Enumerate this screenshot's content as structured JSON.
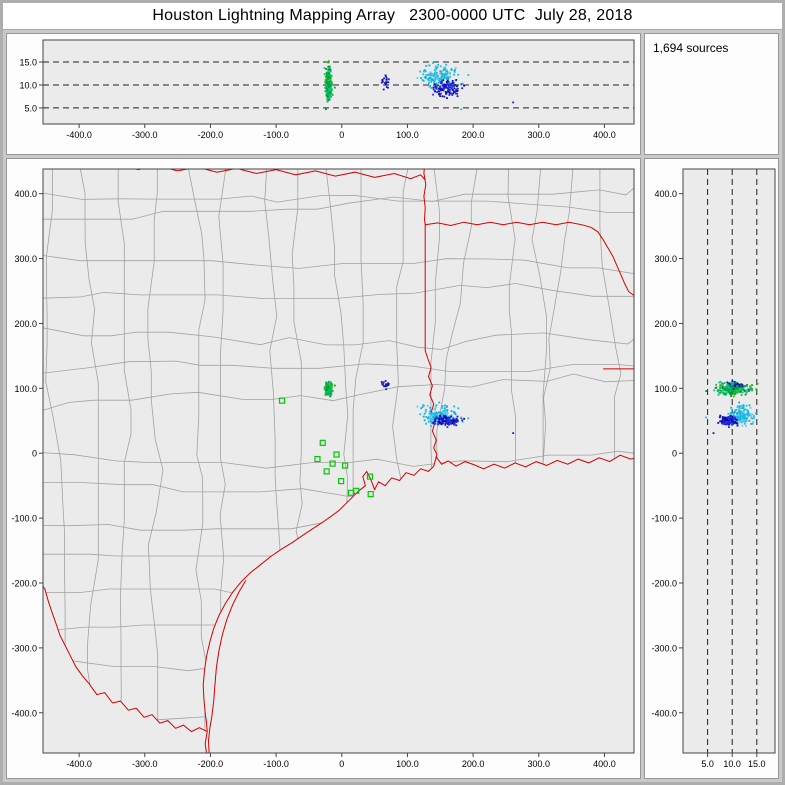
{
  "window": {
    "title": "Houston Lightning Mapping Array   2300-0000 UTC  July 28, 2018"
  },
  "sources_panel": {
    "count_label": "1,694 sources"
  },
  "colors": {
    "window_bg": "#c9c9c9",
    "panel_bg": "#fdfdfd",
    "plot_bg": "#ebebeb",
    "frame": "#444444",
    "grid_dash": "#222222",
    "county": "#a2a2a2",
    "state": "#d40000",
    "station": "#00c800"
  },
  "chart_data": {
    "type": "scatter",
    "title": "Houston Lightning Mapping Array 2300-0000 UTC July 28, 2018",
    "total_sources_label": "1,694 sources",
    "total_sources": 1694,
    "axes": {
      "ew_ticks": {
        "values": [
          -400,
          -300,
          -200,
          -100,
          0,
          100,
          200,
          300,
          400
        ],
        "labels": [
          "-400.0",
          "-300.0",
          "-200.0",
          "-100.0",
          "0",
          "100.0",
          "200.0",
          "300.0",
          "400.0"
        ]
      },
      "ns_ticks": {
        "values": [
          400,
          300,
          200,
          100,
          0,
          -100,
          -200,
          -300,
          -400
        ],
        "labels": [
          "400.0",
          "300.0",
          "200.0",
          "100.0",
          "0",
          "-100.0",
          "-200.0",
          "-300.0",
          "-400.0"
        ]
      },
      "alt_ticks_top": {
        "values": [
          15,
          10,
          5
        ],
        "labels": [
          "15.0",
          "10.0",
          "5.0"
        ]
      },
      "alt_ticks_right": {
        "values": [
          5,
          10,
          15
        ],
        "labels": [
          "5.0",
          "10.0",
          "15.0"
        ]
      },
      "alt_gridlines_km": [
        5,
        10,
        15
      ],
      "ew_lim_km": [
        -455,
        445
      ],
      "ns_lim_km": [
        -462,
        438
      ],
      "alt_lim_top_km": [
        1.5,
        19.8
      ],
      "alt_lim_right_km": [
        0,
        18.7
      ]
    },
    "storm_clusters": [
      {
        "name": "storm-west-cell",
        "ew_km": -20,
        "ew_sd": 2.2,
        "ns_km": 99,
        "ns_sd": 5,
        "alt_km": 10.3,
        "alt_sd": 1.7,
        "n": 280,
        "colors": [
          "#00a800",
          "#00c060",
          "#10c0c0",
          "#30b830",
          "#008f30"
        ]
      },
      {
        "name": "storm-east-anvil",
        "ew_km": 150,
        "ew_sd": 14,
        "ns_km": 58,
        "ns_sd": 7,
        "alt_km": 12.0,
        "alt_sd": 1.2,
        "n": 170,
        "colors": [
          "#2fb3e8",
          "#00c6e0",
          "#63cdf0",
          "#18a8d8"
        ]
      },
      {
        "name": "storm-east-core",
        "ew_km": 160,
        "ew_sd": 10,
        "ns_km": 50,
        "ns_sd": 4,
        "alt_km": 9.3,
        "alt_sd": 0.9,
        "n": 120,
        "colors": [
          "#1616c8",
          "#2430dd",
          "#0a0aa8"
        ]
      },
      {
        "name": "small-cell-east",
        "ew_km": 66,
        "ew_sd": 4,
        "ns_km": 106,
        "ns_sd": 2.5,
        "alt_km": 10.5,
        "alt_sd": 0.7,
        "n": 20,
        "colors": [
          "#1616c8"
        ]
      }
    ],
    "extra_points": [
      {
        "ew": 182,
        "ns": 55,
        "alt": 4.7,
        "col": "#2fb3e8"
      },
      {
        "ew": 261,
        "ns": 31,
        "alt": 6.2,
        "col": "#1616c8"
      }
    ],
    "stations_km": [
      [
        -91,
        81
      ],
      [
        -29,
        16
      ],
      [
        -37,
        -9
      ],
      [
        -8,
        -2
      ],
      [
        -23,
        -28
      ],
      [
        5,
        -19
      ],
      [
        -14,
        -16
      ],
      [
        -1,
        -43
      ],
      [
        14,
        -61
      ],
      [
        43,
        -36
      ],
      [
        22,
        -58
      ],
      [
        44,
        -63
      ]
    ],
    "map_boundaries_km": {
      "coastline": [
        [
          462,
          -4
        ],
        [
          440,
          -9
        ],
        [
          424,
          -3
        ],
        [
          408,
          -13
        ],
        [
          392,
          -7
        ],
        [
          376,
          -15
        ],
        [
          360,
          -9
        ],
        [
          344,
          -17
        ],
        [
          328,
          -11
        ],
        [
          312,
          -19
        ],
        [
          296,
          -13
        ],
        [
          280,
          -21
        ],
        [
          264,
          -15
        ],
        [
          248,
          -23
        ],
        [
          232,
          -17
        ],
        [
          216,
          -24
        ],
        [
          202,
          -18
        ],
        [
          188,
          -13
        ],
        [
          174,
          -20
        ],
        [
          162,
          -12
        ],
        [
          152,
          -17
        ],
        [
          144,
          -6
        ],
        [
          140,
          -20
        ],
        [
          132,
          -28
        ],
        [
          120,
          -24
        ],
        [
          110,
          -34
        ],
        [
          98,
          -30
        ],
        [
          88,
          -42
        ],
        [
          76,
          -38
        ],
        [
          66,
          -50
        ],
        [
          56,
          -44
        ],
        [
          50,
          -56
        ],
        [
          44,
          -40
        ],
        [
          38,
          -28
        ],
        [
          32,
          -36
        ],
        [
          36,
          -50
        ],
        [
          26,
          -58
        ],
        [
          16,
          -68
        ],
        [
          6,
          -78
        ],
        [
          -4,
          -88
        ],
        [
          -16,
          -97
        ],
        [
          -30,
          -107
        ],
        [
          -45,
          -117
        ],
        [
          -60,
          -127
        ],
        [
          -76,
          -138
        ],
        [
          -92,
          -148
        ],
        [
          -108,
          -159
        ],
        [
          -124,
          -172
        ],
        [
          -139,
          -184
        ],
        [
          -153,
          -198
        ],
        [
          -166,
          -214
        ],
        [
          -177,
          -231
        ],
        [
          -187,
          -250
        ],
        [
          -195,
          -270
        ],
        [
          -201,
          -291
        ],
        [
          -206,
          -313
        ],
        [
          -209,
          -335
        ],
        [
          -211,
          -357
        ],
        [
          -210,
          -379
        ],
        [
          -208,
          -400
        ],
        [
          -206,
          -415
        ],
        [
          -205,
          -429
        ]
      ],
      "rio_grande": [
        [
          -205,
          -429
        ],
        [
          -217,
          -423
        ],
        [
          -229,
          -429
        ],
        [
          -241,
          -419
        ],
        [
          -253,
          -424
        ],
        [
          -265,
          -412
        ],
        [
          -277,
          -416
        ],
        [
          -289,
          -403
        ],
        [
          -301,
          -407
        ],
        [
          -313,
          -393
        ],
        [
          -325,
          -396
        ],
        [
          -337,
          -382
        ],
        [
          -349,
          -385
        ],
        [
          -361,
          -369
        ],
        [
          -373,
          -372
        ],
        [
          -385,
          -355
        ],
        [
          -395,
          -343
        ],
        [
          -405,
          -329
        ],
        [
          -413,
          -313
        ],
        [
          -421,
          -297
        ],
        [
          -429,
          -281
        ],
        [
          -435,
          -263
        ],
        [
          -441,
          -246
        ],
        [
          -447,
          -228
        ],
        [
          -452,
          -210
        ],
        [
          -458,
          -200
        ]
      ],
      "mexico_coast": [
        [
          -205,
          -429
        ],
        [
          -208,
          -448
        ],
        [
          -205,
          -470
        ]
      ],
      "sabine_state_line": [
        [
          127,
          452
        ],
        [
          125,
          432
        ],
        [
          128,
          414
        ],
        [
          125,
          396
        ],
        [
          127,
          378
        ],
        [
          126,
          360
        ],
        [
          127,
          352
        ],
        [
          127,
          330
        ],
        [
          127,
          308
        ],
        [
          127,
          286
        ],
        [
          127,
          264
        ],
        [
          127,
          242
        ],
        [
          127,
          220
        ],
        [
          127,
          198
        ],
        [
          127,
          176
        ],
        [
          127,
          158
        ],
        [
          131,
          146
        ],
        [
          136,
          132
        ],
        [
          132,
          118
        ],
        [
          138,
          104
        ],
        [
          134,
          90
        ],
        [
          140,
          76
        ],
        [
          136,
          62
        ],
        [
          142,
          48
        ],
        [
          138,
          34
        ],
        [
          144,
          20
        ],
        [
          140,
          8
        ],
        [
          145,
          -2
        ],
        [
          143,
          -8
        ]
      ],
      "arkansas_louisiana_line": [
        [
          127,
          352
        ],
        [
          146,
          355
        ],
        [
          166,
          351
        ],
        [
          186,
          356
        ],
        [
          206,
          352
        ],
        [
          226,
          356
        ],
        [
          246,
          352
        ],
        [
          266,
          356
        ],
        [
          286,
          352
        ],
        [
          306,
          356
        ],
        [
          326,
          352
        ],
        [
          346,
          356
        ],
        [
          366,
          352
        ],
        [
          380,
          348
        ],
        [
          390,
          341
        ],
        [
          398,
          329
        ],
        [
          405,
          317
        ],
        [
          413,
          303
        ],
        [
          419,
          289
        ],
        [
          425,
          275
        ],
        [
          431,
          261
        ],
        [
          437,
          249
        ],
        [
          445,
          243
        ],
        [
          455,
          238
        ]
      ],
      "louisiana_mississippi_line": [
        [
          398,
          130
        ],
        [
          462,
          130
        ]
      ],
      "red_river_line": [
        [
          -460,
          447
        ],
        [
          -430,
          441
        ],
        [
          -400,
          447
        ],
        [
          -370,
          439
        ],
        [
          -340,
          445
        ],
        [
          -310,
          437
        ],
        [
          -280,
          443
        ],
        [
          -250,
          435
        ],
        [
          -220,
          441
        ],
        [
          -190,
          433
        ],
        [
          -160,
          439
        ],
        [
          -130,
          431
        ],
        [
          -100,
          437
        ],
        [
          -70,
          429
        ],
        [
          -40,
          435
        ],
        [
          -10,
          427
        ],
        [
          20,
          433
        ],
        [
          50,
          425
        ],
        [
          80,
          431
        ],
        [
          105,
          423
        ],
        [
          120,
          429
        ],
        [
          127,
          421
        ]
      ],
      "barrier_island": [
        [
          -146,
          -196
        ],
        [
          -156,
          -213
        ],
        [
          -166,
          -233
        ],
        [
          -175,
          -256
        ],
        [
          -182,
          -280
        ],
        [
          -187,
          -304
        ],
        [
          -191,
          -330
        ],
        [
          -193,
          -356
        ],
        [
          -195,
          -382
        ],
        [
          -198,
          -406
        ],
        [
          -201,
          -424
        ],
        [
          -203,
          -444
        ],
        [
          -202,
          -462
        ]
      ]
    }
  }
}
